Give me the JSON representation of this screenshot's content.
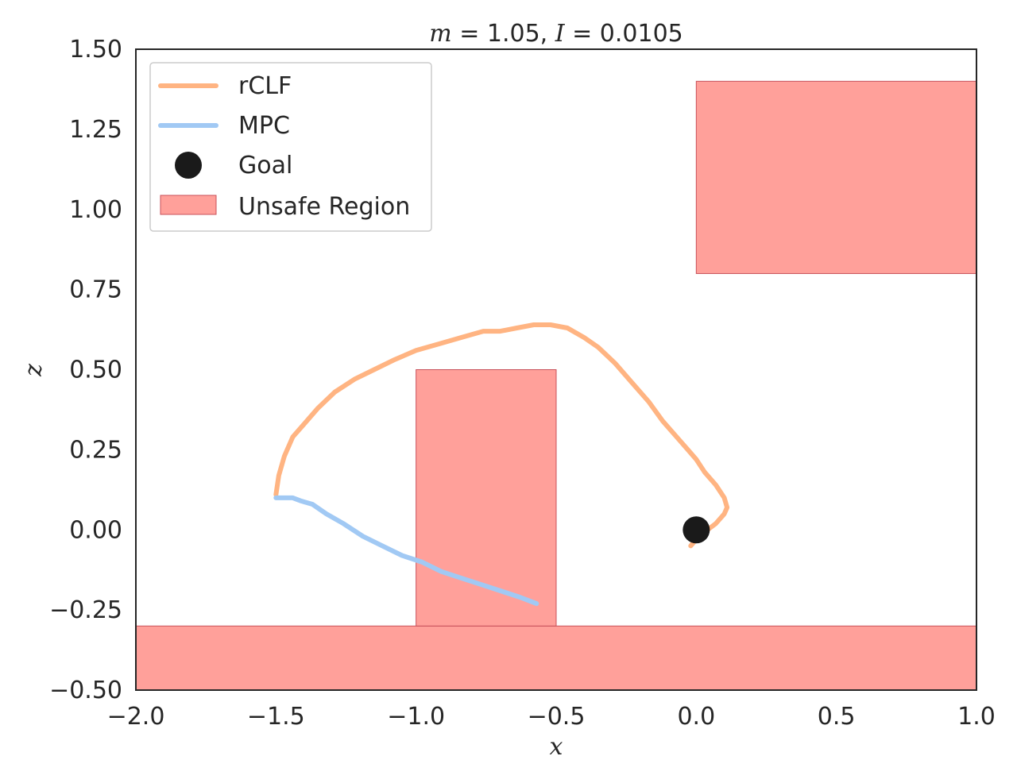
{
  "chart_data": {
    "type": "line",
    "title": {
      "var1": "m",
      "val1": " = 1.05, ",
      "var2": "I",
      "val2": " = 0.0105"
    },
    "xlabel": "x",
    "ylabel": "z",
    "xlim": [
      -2.0,
      1.0
    ],
    "ylim": [
      -0.5,
      1.5
    ],
    "grid": false,
    "legend_position": "top-left",
    "x_ticks": [
      "−2.0",
      "−1.5",
      "−1.0",
      "−0.5",
      "0.0",
      "0.5",
      "1.0"
    ],
    "x_tick_values": [
      -2.0,
      -1.5,
      -1.0,
      -0.5,
      0.0,
      0.5,
      1.0
    ],
    "y_ticks": [
      "−0.50",
      "−0.25",
      "0.00",
      "0.25",
      "0.50",
      "0.75",
      "1.00",
      "1.25",
      "1.50"
    ],
    "y_tick_values": [
      -0.5,
      -0.25,
      0.0,
      0.25,
      0.5,
      0.75,
      1.0,
      1.25,
      1.5
    ],
    "series": [
      {
        "name": "rCLF",
        "color": "#FFB482",
        "x": [
          -1.5,
          -1.49,
          -1.47,
          -1.44,
          -1.4,
          -1.35,
          -1.29,
          -1.22,
          -1.15,
          -1.08,
          -1.0,
          -0.92,
          -0.84,
          -0.76,
          -0.7,
          -0.64,
          -0.58,
          -0.52,
          -0.46,
          -0.4,
          -0.35,
          -0.29,
          -0.23,
          -0.17,
          -0.12,
          -0.07,
          -0.03,
          0.0,
          0.03,
          0.07,
          0.1,
          0.11,
          0.1,
          0.07,
          0.04,
          0.02,
          0.0,
          -0.02
        ],
        "y": [
          0.11,
          0.17,
          0.23,
          0.29,
          0.33,
          0.38,
          0.43,
          0.47,
          0.5,
          0.53,
          0.56,
          0.58,
          0.6,
          0.62,
          0.62,
          0.63,
          0.64,
          0.64,
          0.63,
          0.6,
          0.57,
          0.52,
          0.46,
          0.4,
          0.34,
          0.29,
          0.25,
          0.22,
          0.18,
          0.14,
          0.1,
          0.07,
          0.05,
          0.02,
          0.0,
          -0.01,
          -0.03,
          -0.05
        ]
      },
      {
        "name": "MPC",
        "color": "#A1C9F4",
        "x": [
          -1.5,
          -1.47,
          -1.44,
          -1.41,
          -1.37,
          -1.32,
          -1.26,
          -1.19,
          -1.12,
          -1.05,
          -0.98,
          -0.91,
          -0.84,
          -0.77,
          -0.7,
          -0.63,
          -0.57
        ],
        "y": [
          0.1,
          0.1,
          0.1,
          0.09,
          0.08,
          0.05,
          0.02,
          -0.02,
          -0.05,
          -0.08,
          -0.1,
          -0.13,
          -0.15,
          -0.17,
          -0.19,
          -0.21,
          -0.23
        ]
      }
    ],
    "goal": {
      "name": "Goal",
      "x": 0.0,
      "y": 0.0,
      "color": "#1a1a1a"
    },
    "unsafe_regions": {
      "name": "Unsafe Region",
      "color": "#FFA09A",
      "edge_color": "#C8515A",
      "rects": [
        {
          "x0": -2.0,
          "x1": 1.0,
          "y0": -0.5,
          "y1": -0.3
        },
        {
          "x0": -1.0,
          "x1": -0.5,
          "y0": -0.3,
          "y1": 0.5
        },
        {
          "x0": 0.0,
          "x1": 1.0,
          "y0": 0.8,
          "y1": 1.4
        }
      ]
    },
    "legend": [
      "rCLF",
      "MPC",
      "Goal",
      "Unsafe Region"
    ]
  }
}
